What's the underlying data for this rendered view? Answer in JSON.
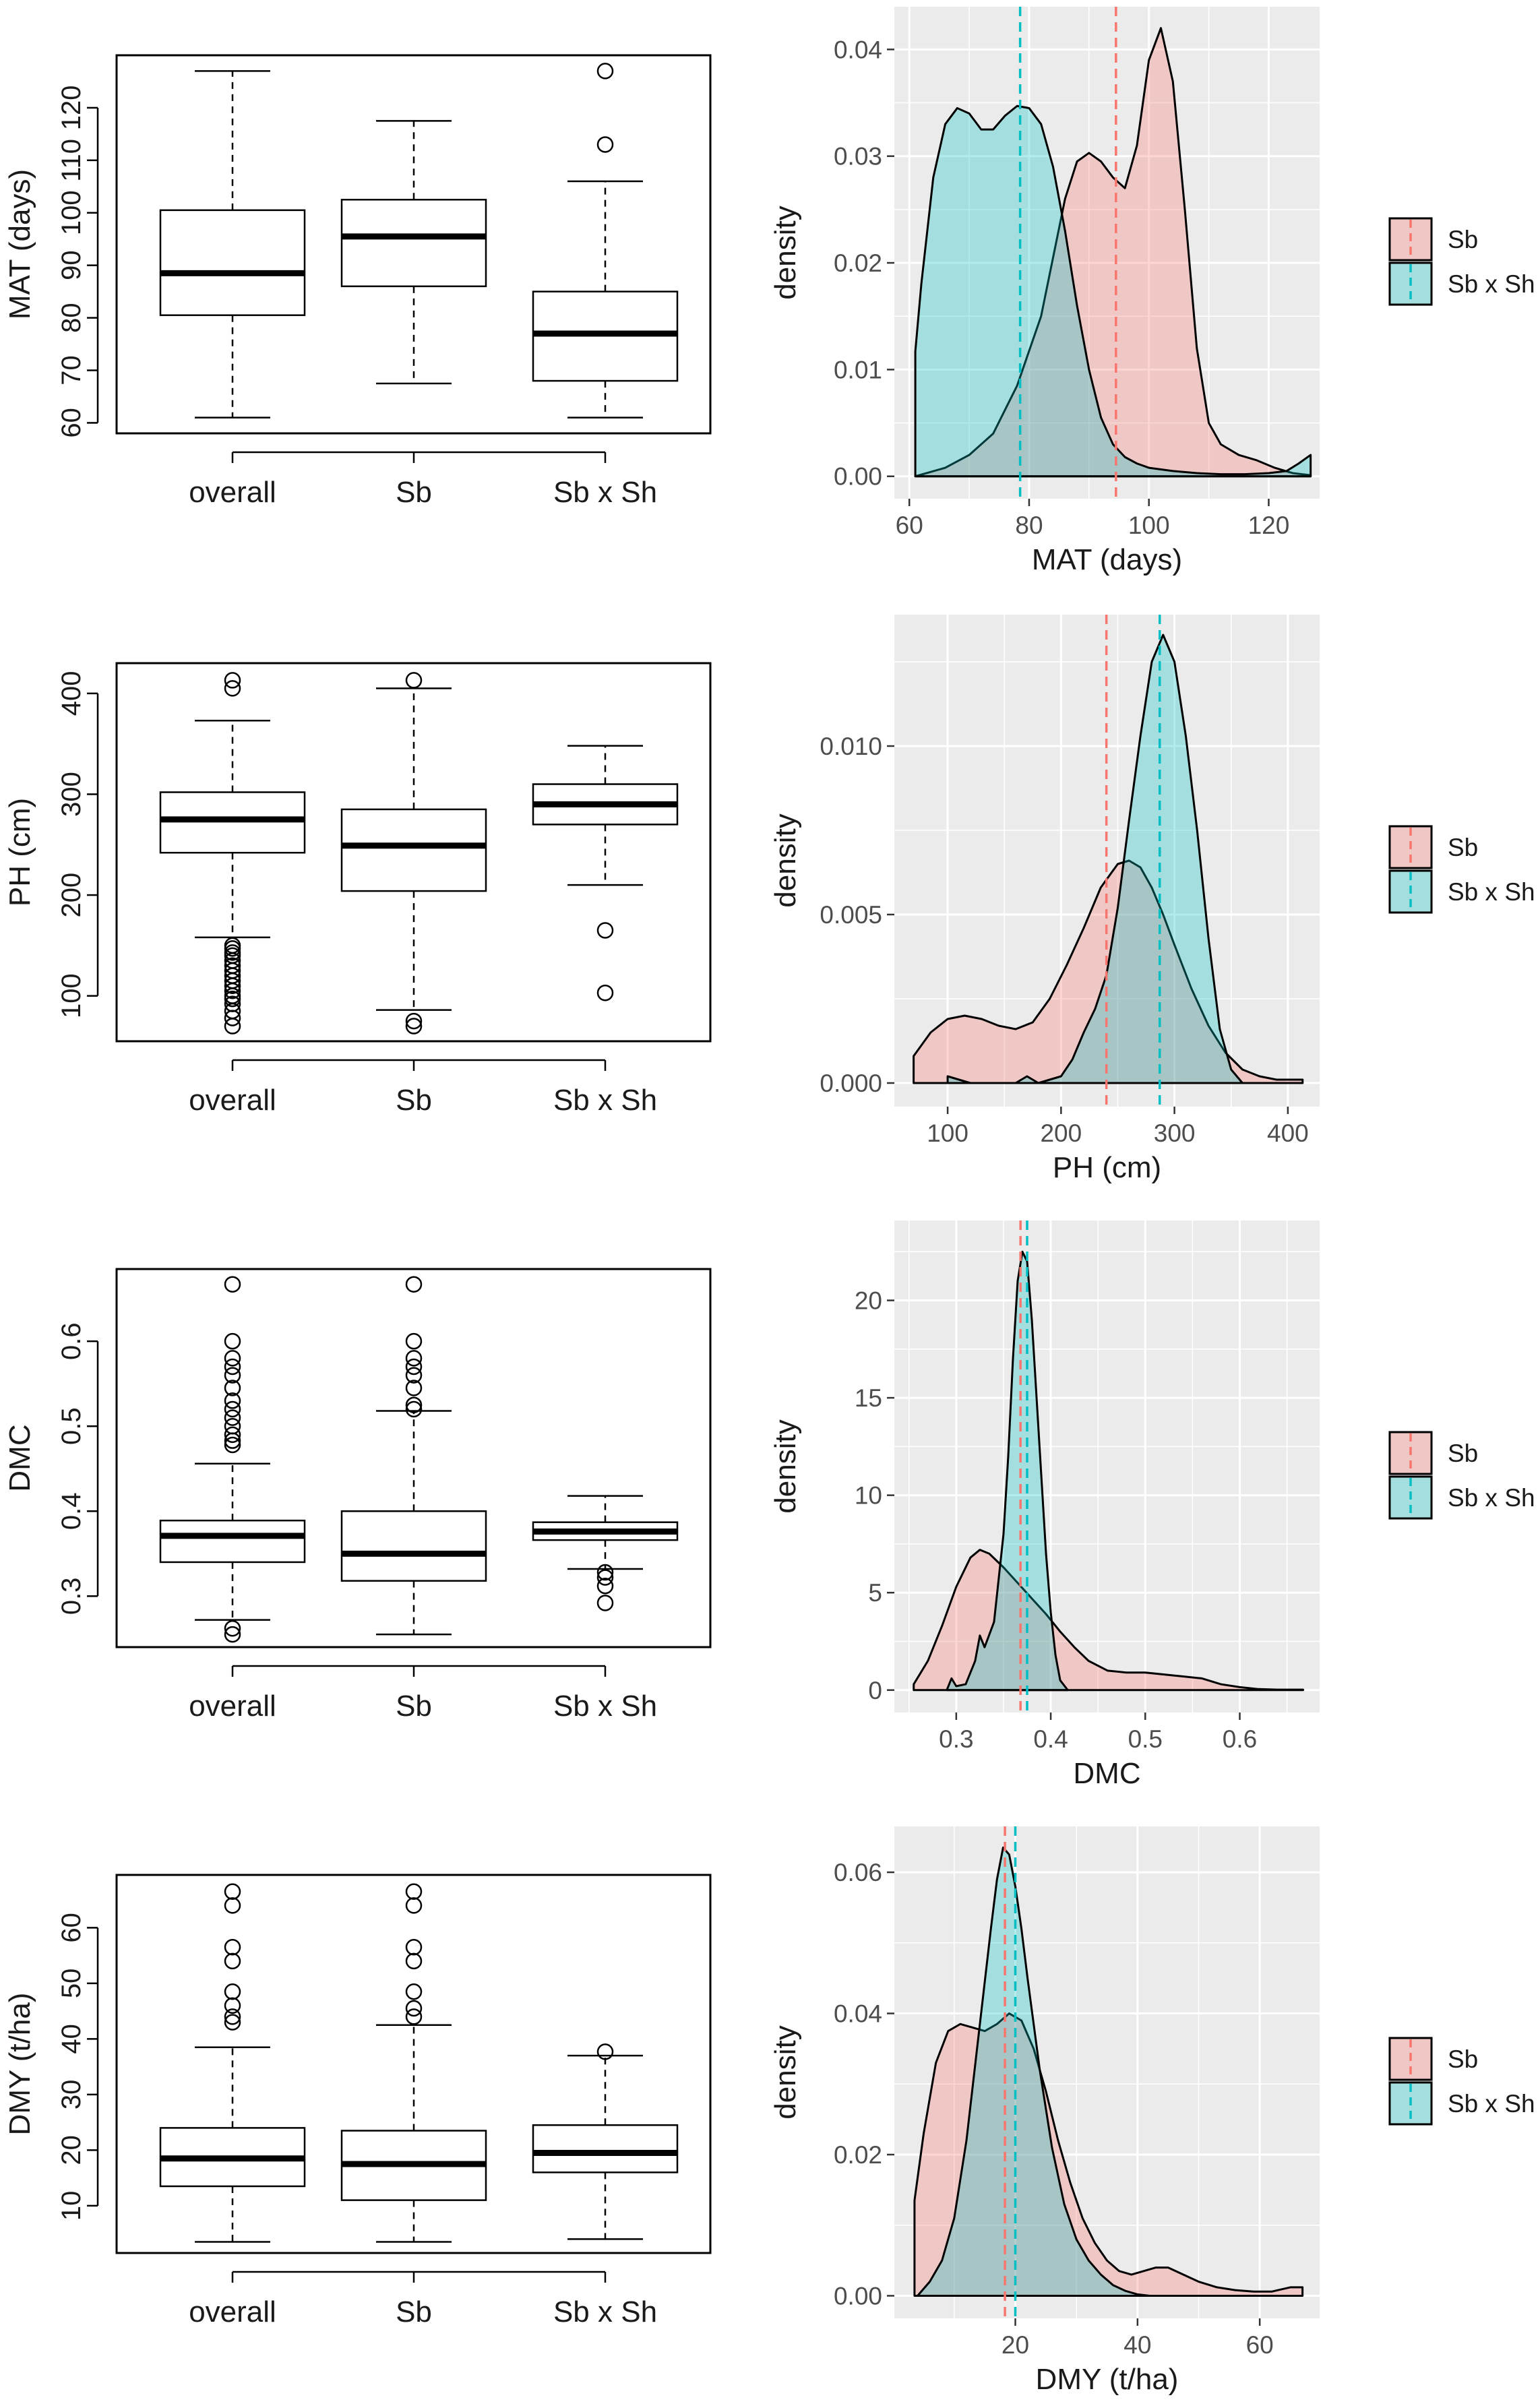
{
  "colors": {
    "sb": "#F8766D",
    "sbxsh": "#00BFC4",
    "sb_fill": "#F4CCCC",
    "sbxsh_fill": "#B3E0E2",
    "overlap_fill": "#B8CBCB",
    "panel_bg": "#EBEBEB",
    "grid": "#FFFFFF"
  },
  "chart_data": [
    {
      "type": "box",
      "ylabel": "MAT (days)",
      "categories": [
        "overall",
        "Sb",
        "Sb x Sh"
      ],
      "ylim": [
        58,
        130
      ],
      "yticks": [
        60,
        70,
        80,
        90,
        100,
        110,
        120
      ],
      "ytick_labels": [
        "60",
        "70",
        "80",
        "90",
        "100",
        "110",
        "120"
      ],
      "boxes": [
        {
          "lower_whisker": 61,
          "q1": 80.5,
          "median": 88.5,
          "q3": 100.5,
          "upper_whisker": 127,
          "outliers": []
        },
        {
          "lower_whisker": 67.5,
          "q1": 86,
          "median": 95.5,
          "q3": 102.5,
          "upper_whisker": 117.5,
          "outliers": []
        },
        {
          "lower_whisker": 61,
          "q1": 68,
          "median": 77,
          "q3": 85,
          "upper_whisker": 106,
          "outliers": [
            113,
            127
          ]
        }
      ]
    },
    {
      "type": "density",
      "xlabel": "MAT (days)",
      "ylabel": "density",
      "xlim": [
        57.5,
        128.5
      ],
      "ylim": [
        -0.0021,
        0.044
      ],
      "xticks": [
        60,
        80,
        100,
        120
      ],
      "xtick_labels": [
        "60",
        "80",
        "100",
        "120"
      ],
      "yticks": [
        0,
        0.01,
        0.02,
        0.03,
        0.04
      ],
      "ytick_labels": [
        "0.00",
        "0.01",
        "0.02",
        "0.03",
        "0.04"
      ],
      "legend": [
        "Sb",
        "Sb x Sh"
      ],
      "series": [
        {
          "name": "Sb",
          "mean": 94.5,
          "x": [
            61,
            66,
            70,
            74,
            78,
            82,
            86,
            88,
            90,
            92,
            94,
            96,
            98,
            100,
            102,
            104,
            106,
            108,
            110,
            112,
            115,
            118,
            121,
            124,
            127
          ],
          "y": [
            0,
            0.0008,
            0.002,
            0.004,
            0.0085,
            0.015,
            0.026,
            0.0295,
            0.0303,
            0.0295,
            0.028,
            0.027,
            0.031,
            0.039,
            0.042,
            0.037,
            0.025,
            0.012,
            0.005,
            0.003,
            0.002,
            0.0015,
            0.0008,
            0.0003,
            0.0001
          ]
        },
        {
          "name": "Sb x Sh",
          "mean": 78.5,
          "x": [
            61,
            62,
            64,
            66,
            68,
            70,
            72,
            74,
            76,
            78,
            80,
            82,
            84,
            86,
            88,
            90,
            92,
            94,
            96,
            98,
            100,
            104,
            108,
            112,
            116,
            120,
            123,
            125,
            127
          ],
          "y": [
            0.0117,
            0.018,
            0.028,
            0.033,
            0.0345,
            0.034,
            0.0325,
            0.0325,
            0.0338,
            0.0347,
            0.0345,
            0.033,
            0.029,
            0.023,
            0.016,
            0.01,
            0.0055,
            0.003,
            0.0018,
            0.0012,
            0.0008,
            0.0005,
            0.0003,
            0.0002,
            0.0002,
            0.0003,
            0.0005,
            0.0012,
            0.002
          ]
        }
      ]
    },
    {
      "type": "box",
      "ylabel": "PH (cm)",
      "categories": [
        "overall",
        "Sb",
        "Sb x Sh"
      ],
      "ylim": [
        55,
        430
      ],
      "yticks": [
        100,
        200,
        300,
        400
      ],
      "ytick_labels": [
        "100",
        "200",
        "300",
        "400"
      ],
      "boxes": [
        {
          "lower_whisker": 158,
          "q1": 242,
          "median": 275,
          "q3": 302,
          "upper_whisker": 373,
          "outliers": [
            70,
            78,
            85,
            92,
            97,
            100,
            105,
            110,
            115,
            120,
            125,
            130,
            135,
            140,
            143,
            147,
            150,
            405,
            413
          ]
        },
        {
          "lower_whisker": 86,
          "q1": 204,
          "median": 249,
          "q3": 285,
          "upper_whisker": 405,
          "outliers": [
            70,
            75,
            413
          ]
        },
        {
          "lower_whisker": 210,
          "q1": 270,
          "median": 290,
          "q3": 310,
          "upper_whisker": 348,
          "outliers": [
            103,
            165
          ]
        }
      ]
    },
    {
      "type": "density",
      "xlabel": "PH (cm)",
      "ylabel": "density",
      "xlim": [
        53,
        428
      ],
      "ylim": [
        -0.0007,
        0.0139
      ],
      "xticks": [
        100,
        200,
        300,
        400
      ],
      "xtick_labels": [
        "100",
        "200",
        "300",
        "400"
      ],
      "yticks": [
        0,
        0.005,
        0.01
      ],
      "ytick_labels": [
        "0.000",
        "0.005",
        "0.010"
      ],
      "legend": [
        "Sb",
        "Sb x Sh"
      ],
      "series": [
        {
          "name": "Sb",
          "mean": 240,
          "x": [
            70,
            85,
            100,
            115,
            130,
            145,
            160,
            175,
            190,
            205,
            220,
            235,
            250,
            260,
            270,
            280,
            290,
            300,
            315,
            330,
            345,
            360,
            375,
            390,
            413
          ],
          "y": [
            0.0008,
            0.0015,
            0.0019,
            0.002,
            0.0019,
            0.0017,
            0.0016,
            0.0018,
            0.0025,
            0.0035,
            0.0046,
            0.0058,
            0.0065,
            0.0066,
            0.0064,
            0.0058,
            0.005,
            0.0041,
            0.0028,
            0.0017,
            0.0009,
            0.0004,
            0.0002,
            0.0001,
            0.0001
          ]
        },
        {
          "name": "Sb x Sh",
          "mean": 287,
          "x": [
            100,
            110,
            120,
            130,
            160,
            170,
            180,
            200,
            210,
            220,
            230,
            240,
            250,
            260,
            270,
            280,
            290,
            300,
            310,
            320,
            330,
            340,
            350,
            360
          ],
          "y": [
            0.0002,
            0.0001,
            0,
            0,
            0,
            0.0002,
            0,
            0.0002,
            0.0007,
            0.0015,
            0.0022,
            0.0032,
            0.0052,
            0.0078,
            0.0103,
            0.0125,
            0.0133,
            0.0125,
            0.0103,
            0.0075,
            0.0043,
            0.0016,
            0.0004,
            0
          ]
        }
      ]
    },
    {
      "type": "box",
      "ylabel": "DMC",
      "categories": [
        "overall",
        "Sb",
        "Sb x Sh"
      ],
      "ylim": [
        0.24,
        0.685
      ],
      "yticks": [
        0.3,
        0.4,
        0.5,
        0.6
      ],
      "ytick_labels": [
        "0.3",
        "0.4",
        "0.5",
        "0.6"
      ],
      "boxes": [
        {
          "lower_whisker": 0.272,
          "q1": 0.34,
          "median": 0.371,
          "q3": 0.389,
          "upper_whisker": 0.456,
          "outliers": [
            0.255,
            0.262,
            0.478,
            0.483,
            0.49,
            0.5,
            0.51,
            0.52,
            0.53,
            0.545,
            0.56,
            0.57,
            0.58,
            0.6,
            0.667
          ]
        },
        {
          "lower_whisker": 0.255,
          "q1": 0.318,
          "median": 0.35,
          "q3": 0.4,
          "upper_whisker": 0.518,
          "outliers": [
            0.52,
            0.525,
            0.545,
            0.56,
            0.57,
            0.58,
            0.6,
            0.667
          ]
        },
        {
          "lower_whisker": 0.332,
          "q1": 0.366,
          "median": 0.376,
          "q3": 0.387,
          "upper_whisker": 0.418,
          "outliers": [
            0.292,
            0.312,
            0.322,
            0.328
          ]
        }
      ]
    },
    {
      "type": "density",
      "xlabel": "DMC",
      "ylabel": "density",
      "xlim": [
        0.2345,
        0.6845
      ],
      "ylim": [
        -1.15,
        24.1
      ],
      "xticks": [
        0.3,
        0.4,
        0.5,
        0.6
      ],
      "xtick_labels": [
        "0.3",
        "0.4",
        "0.5",
        "0.6"
      ],
      "yticks": [
        0,
        5,
        10,
        15,
        20
      ],
      "ytick_labels": [
        "0",
        "5",
        "10",
        "15",
        "20"
      ],
      "legend": [
        "Sb",
        "Sb x Sh"
      ],
      "series": [
        {
          "name": "Sb",
          "mean": 0.368,
          "x": [
            0.255,
            0.27,
            0.285,
            0.3,
            0.315,
            0.325,
            0.335,
            0.35,
            0.365,
            0.38,
            0.395,
            0.41,
            0.425,
            0.44,
            0.46,
            0.48,
            0.5,
            0.52,
            0.54,
            0.56,
            0.58,
            0.6,
            0.62,
            0.64,
            0.667
          ],
          "y": [
            0.3,
            1.5,
            3.3,
            5.3,
            6.8,
            7.2,
            7,
            6.3,
            5.5,
            4.7,
            3.9,
            3,
            2.2,
            1.5,
            1,
            0.9,
            0.9,
            0.8,
            0.7,
            0.6,
            0.3,
            0.15,
            0.05,
            0.02,
            0.02
          ]
        },
        {
          "name": "Sb x Sh",
          "mean": 0.375,
          "x": [
            0.29,
            0.295,
            0.3,
            0.31,
            0.32,
            0.325,
            0.33,
            0.34,
            0.35,
            0.355,
            0.36,
            0.365,
            0.37,
            0.375,
            0.38,
            0.385,
            0.39,
            0.395,
            0.4,
            0.405,
            0.41,
            0.418
          ],
          "y": [
            0,
            0.6,
            0.2,
            0.3,
            1.5,
            2.8,
            2.2,
            3.5,
            8,
            12,
            17,
            21,
            22.5,
            22,
            19,
            15,
            11,
            7,
            4,
            1.8,
            0.5,
            0
          ]
        }
      ]
    },
    {
      "type": "box",
      "ylabel": "DMY (t/ha)",
      "categories": [
        "overall",
        "Sb",
        "Sb x Sh"
      ],
      "ylim": [
        1.5,
        69.5
      ],
      "yticks": [
        10,
        20,
        30,
        40,
        50,
        60
      ],
      "ytick_labels": [
        "10",
        "20",
        "30",
        "40",
        "50",
        "60"
      ],
      "boxes": [
        {
          "lower_whisker": 3.5,
          "q1": 13.5,
          "median": 18.5,
          "q3": 24,
          "upper_whisker": 38.5,
          "outliers": [
            43,
            44,
            46,
            48.5,
            54,
            56.5,
            64,
            66.5
          ]
        },
        {
          "lower_whisker": 3.5,
          "q1": 11,
          "median": 17.5,
          "q3": 23.5,
          "upper_whisker": 42.5,
          "outliers": [
            44,
            45.5,
            48.5,
            54,
            56.5,
            64,
            66.5
          ]
        },
        {
          "lower_whisker": 4,
          "q1": 16,
          "median": 19.5,
          "q3": 24.5,
          "upper_whisker": 37,
          "outliers": [
            37.7
          ]
        }
      ]
    },
    {
      "type": "density",
      "xlabel": "DMY (t/ha)",
      "ylabel": "density",
      "xlim": [
        0.2,
        69.8
      ],
      "ylim": [
        -0.0032,
        0.0665
      ],
      "xticks": [
        20,
        40,
        60
      ],
      "xtick_labels": [
        "20",
        "40",
        "60"
      ],
      "yticks": [
        0,
        0.02,
        0.04,
        0.06
      ],
      "ytick_labels": [
        "0.00",
        "0.02",
        "0.04",
        "0.06"
      ],
      "legend": [
        "Sb",
        "Sb x Sh"
      ],
      "series": [
        {
          "name": "Sb",
          "mean": 18.3,
          "x": [
            3.5,
            5,
            7,
            9,
            11,
            13,
            15,
            17,
            19,
            21,
            23,
            25,
            27,
            29,
            31,
            33,
            35,
            37,
            39,
            41,
            43,
            45,
            47,
            50,
            53,
            56,
            59,
            62,
            65,
            67
          ],
          "y": [
            0.0135,
            0.023,
            0.033,
            0.0375,
            0.0385,
            0.038,
            0.0375,
            0.0385,
            0.04,
            0.039,
            0.035,
            0.029,
            0.022,
            0.016,
            0.011,
            0.0075,
            0.005,
            0.0035,
            0.003,
            0.0035,
            0.004,
            0.004,
            0.0032,
            0.002,
            0.0012,
            0.0008,
            0.0006,
            0.0006,
            0.0012,
            0.0012
          ]
        },
        {
          "name": "Sb x Sh",
          "mean": 20,
          "x": [
            4,
            6,
            8,
            10,
            12,
            14,
            16,
            17,
            18,
            19,
            20,
            21,
            22,
            24,
            26,
            28,
            30,
            32,
            34,
            36,
            38,
            40,
            42
          ],
          "y": [
            0,
            0.002,
            0.005,
            0.011,
            0.022,
            0.037,
            0.052,
            0.059,
            0.0635,
            0.0625,
            0.058,
            0.052,
            0.045,
            0.032,
            0.021,
            0.013,
            0.008,
            0.005,
            0.003,
            0.0015,
            0.0007,
            0.0002,
            0
          ]
        }
      ]
    }
  ]
}
